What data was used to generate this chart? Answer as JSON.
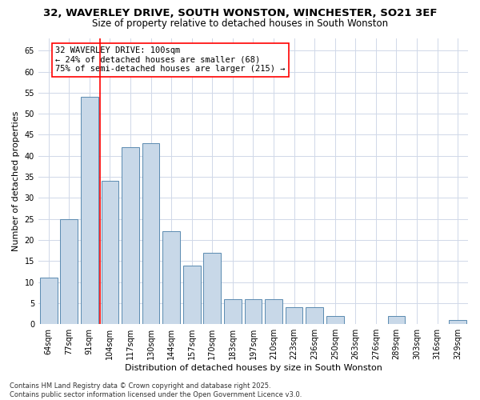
{
  "title1": "32, WAVERLEY DRIVE, SOUTH WONSTON, WINCHESTER, SO21 3EF",
  "title2": "Size of property relative to detached houses in South Wonston",
  "xlabel": "Distribution of detached houses by size in South Wonston",
  "ylabel": "Number of detached properties",
  "categories": [
    "64sqm",
    "77sqm",
    "91sqm",
    "104sqm",
    "117sqm",
    "130sqm",
    "144sqm",
    "157sqm",
    "170sqm",
    "183sqm",
    "197sqm",
    "210sqm",
    "223sqm",
    "236sqm",
    "250sqm",
    "263sqm",
    "276sqm",
    "289sqm",
    "303sqm",
    "316sqm",
    "329sqm"
  ],
  "values": [
    11,
    25,
    54,
    34,
    42,
    43,
    22,
    14,
    17,
    6,
    6,
    6,
    4,
    4,
    2,
    0,
    0,
    2,
    0,
    0,
    1
  ],
  "bar_color": "#c8d8e8",
  "bar_edge_color": "#5a8ab0",
  "red_line_x": 2.5,
  "ylim_max": 68,
  "yticks": [
    0,
    5,
    10,
    15,
    20,
    25,
    30,
    35,
    40,
    45,
    50,
    55,
    60,
    65
  ],
  "annotation_title": "32 WAVERLEY DRIVE: 100sqm",
  "annotation_line1": "← 24% of detached houses are smaller (68)",
  "annotation_line2": "75% of semi-detached houses are larger (215) →",
  "footer_line1": "Contains HM Land Registry data © Crown copyright and database right 2025.",
  "footer_line2": "Contains public sector information licensed under the Open Government Licence v3.0.",
  "background_color": "#ffffff",
  "grid_color": "#d0d8e8",
  "title_fontsize": 9.5,
  "subtitle_fontsize": 8.5,
  "xlabel_fontsize": 8,
  "ylabel_fontsize": 8,
  "tick_fontsize": 7,
  "ann_fontsize": 7.5,
  "footer_fontsize": 6
}
